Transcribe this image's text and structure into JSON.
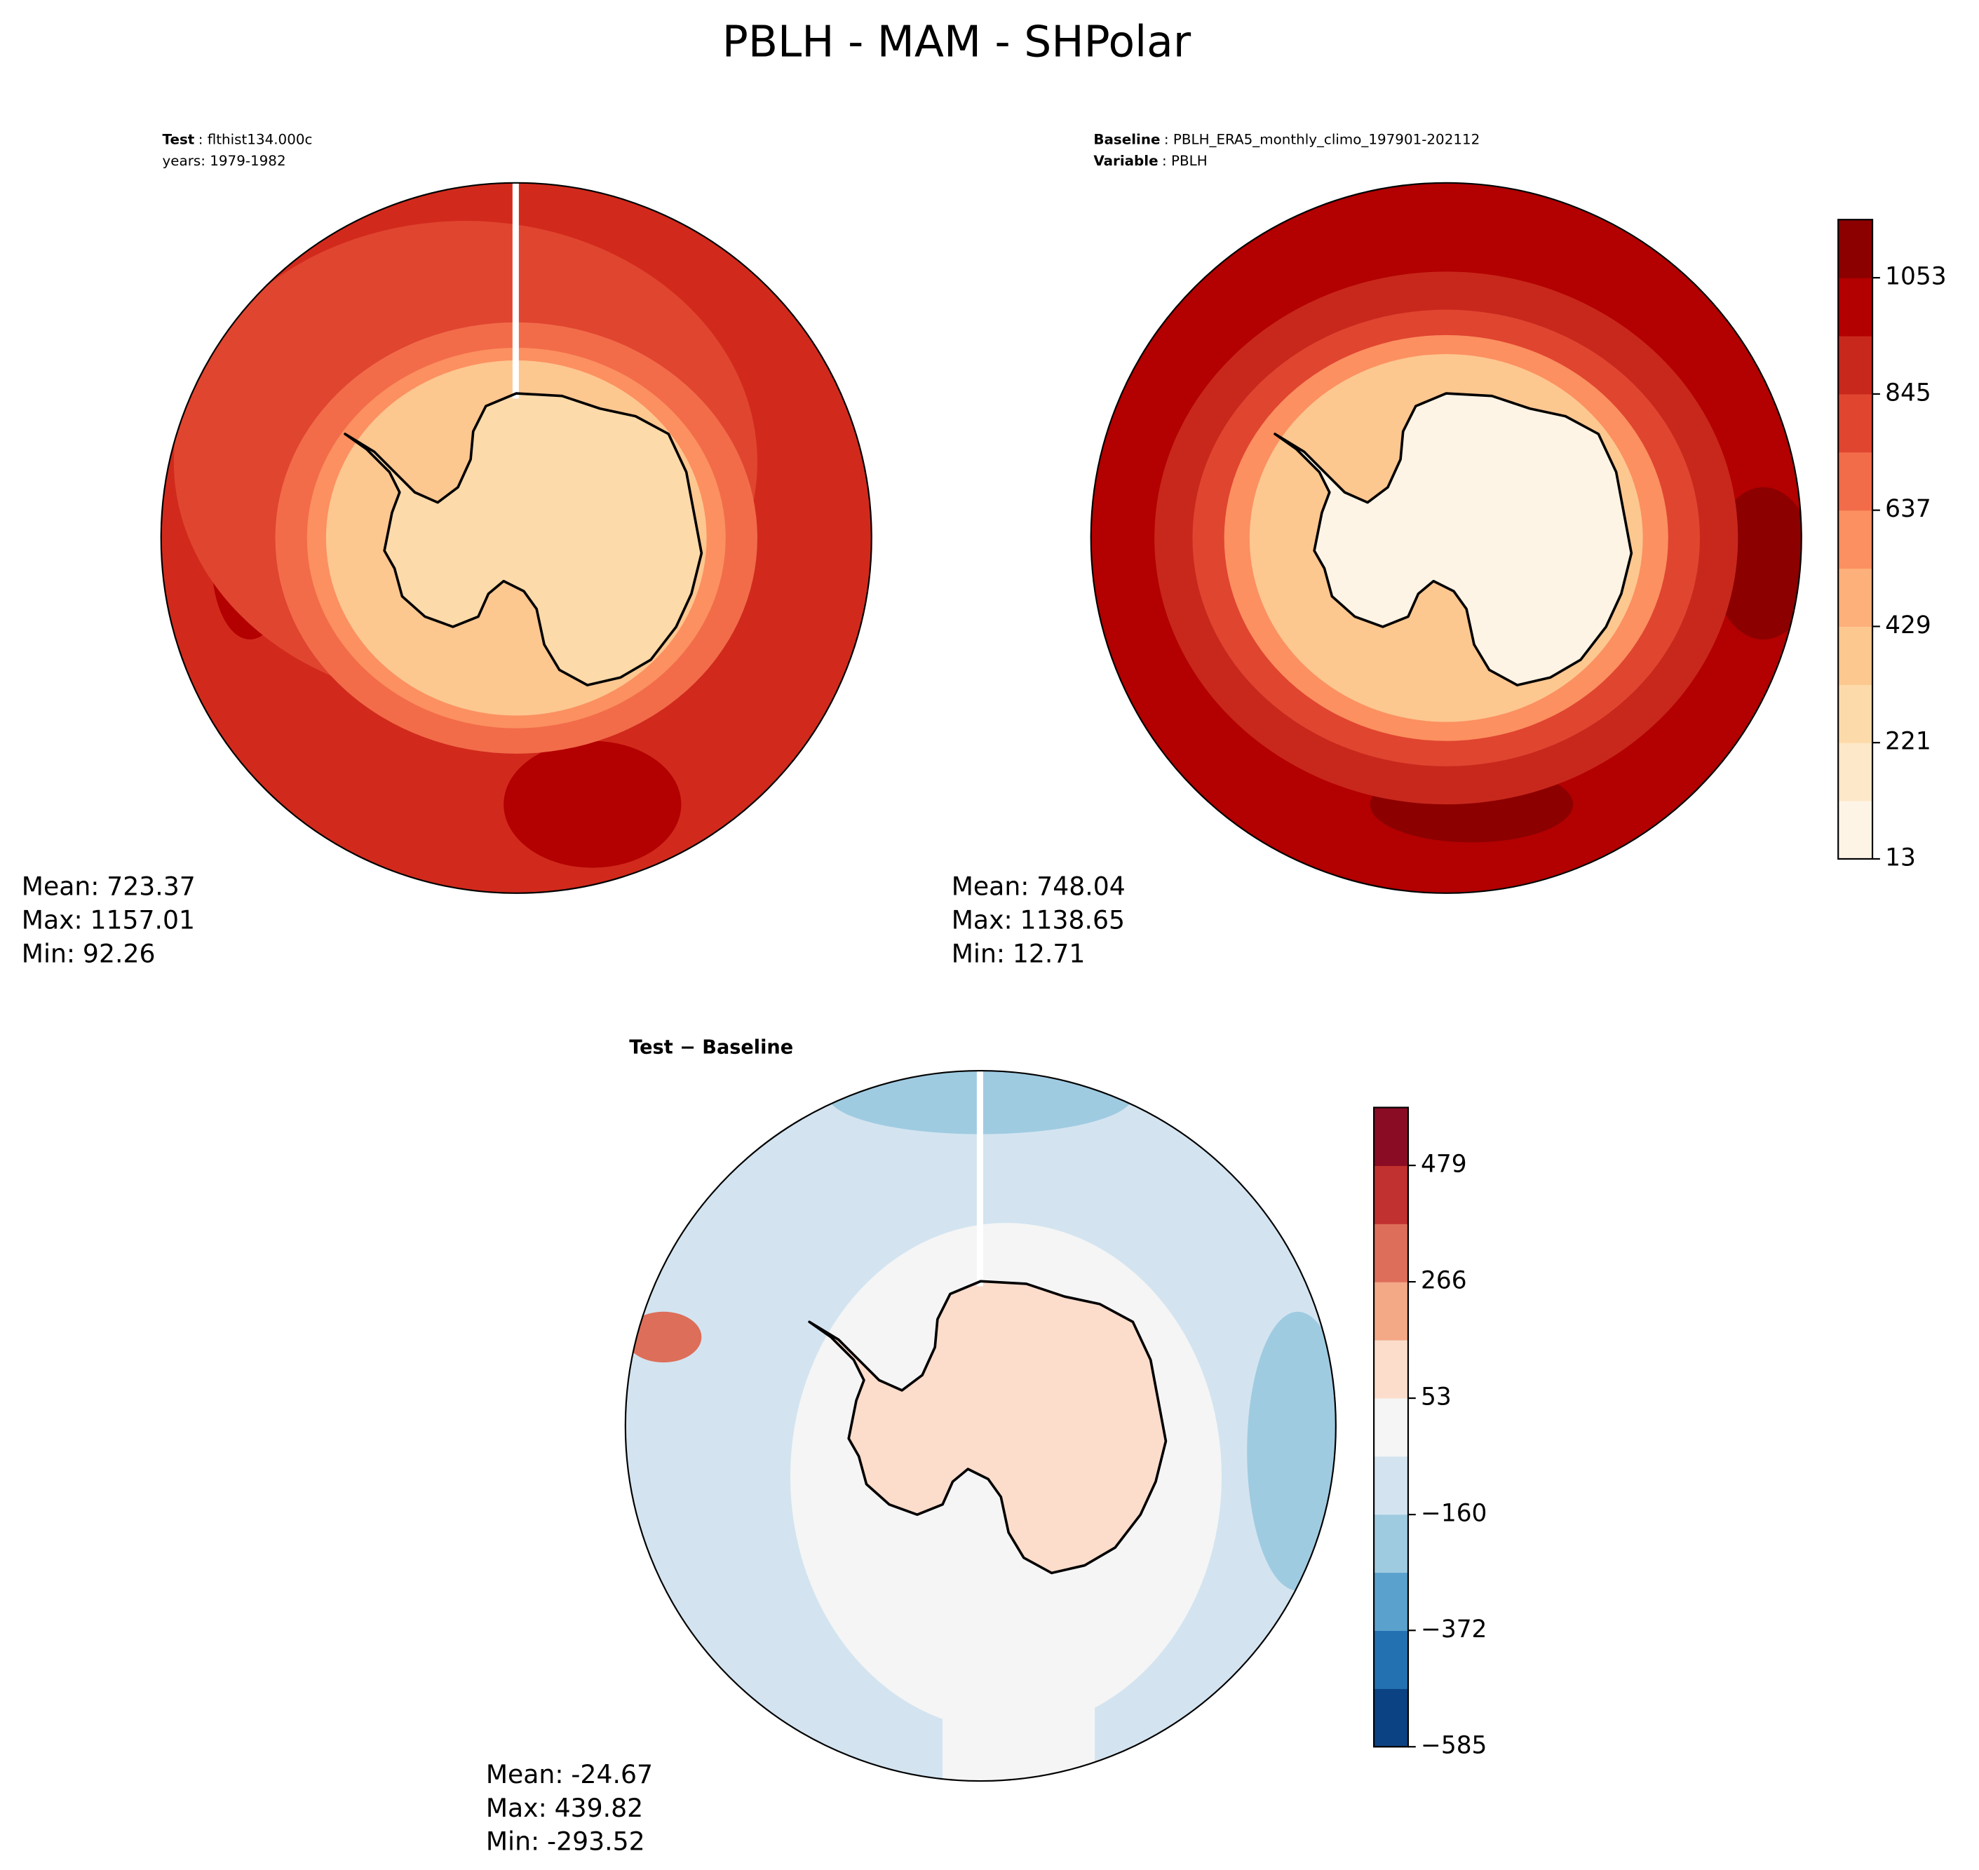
{
  "title": "PBLH - MAM - SHPolar",
  "chart_data": [
    {
      "type": "map",
      "header": [
        {
          "bold": "Test",
          "text": ": flthist134.000c"
        },
        {
          "text": "years: 1979-1982"
        }
      ],
      "stats": [
        {
          "label": "Mean:",
          "value": 723.37
        },
        {
          "label": "Max:",
          "value": 1157.01
        },
        {
          "label": "Min:",
          "value": 92.26
        }
      ]
    },
    {
      "type": "map",
      "header": [
        {
          "bold": "Baseline",
          "text": ": PBLH_ERA5_monthly_climo_197901-202112"
        },
        {
          "bold": "Variable",
          "text": ": PBLH"
        }
      ],
      "stats": [
        {
          "label": "Mean:",
          "value": 748.04
        },
        {
          "label": "Max:",
          "value": 1138.65
        },
        {
          "label": "Min:",
          "value": 12.71
        }
      ],
      "colorbar": {
        "range": [
          13,
          1157
        ],
        "ticks": [
          13,
          221,
          429,
          637,
          845,
          1053
        ],
        "colors": [
          "#fef4e6",
          "#fde8c9",
          "#fddaaa",
          "#fdc790",
          "#fdb07a",
          "#fc9060",
          "#f26c4a",
          "#e04530",
          "#c8281c",
          "#b30000",
          "#8c0000"
        ]
      }
    },
    {
      "type": "map",
      "header": [
        {
          "bold": "Test − Baseline"
        }
      ],
      "stats": [
        {
          "label": "Mean:",
          "value": -24.67
        },
        {
          "label": "Max:",
          "value": 439.82
        },
        {
          "label": "Min:",
          "value": -293.52
        }
      ],
      "colorbar": {
        "range": [
          -585,
          585
        ],
        "ticks": [
          {
            "value": -585,
            "label": "−585"
          },
          {
            "value": -372,
            "label": "−372"
          },
          {
            "value": -160,
            "label": "−160"
          },
          53,
          266,
          479
        ],
        "colors": [
          "#0b4283",
          "#2471b2",
          "#5aa1cd",
          "#9fcbe1",
          "#d3e4f0",
          "#f5f5f5",
          "#fcdccb",
          "#f3a886",
          "#dd6e5a",
          "#c1312f",
          "#8a0c24"
        ]
      }
    }
  ]
}
